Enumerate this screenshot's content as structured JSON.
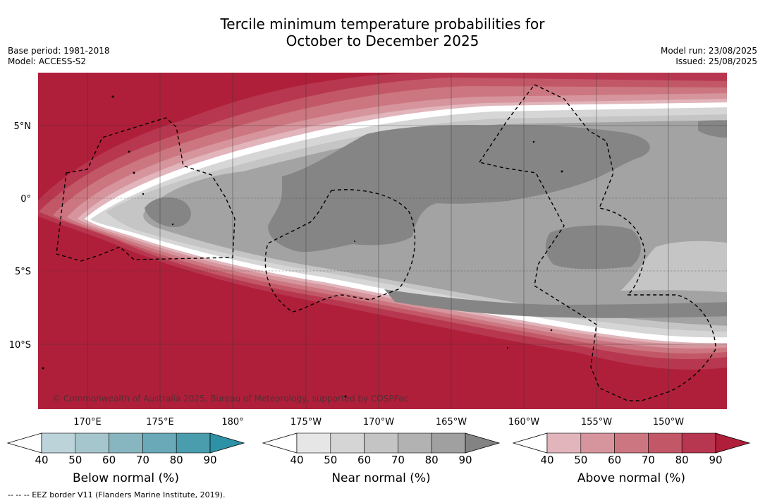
{
  "title_line1": "Tercile minimum temperature probabilities for",
  "title_line2": "October to December 2025",
  "base_period": "Base period: 1981-2018",
  "model": "Model: ACCESS-S2",
  "model_run": "Model run: 23/08/2025",
  "issued": "Issued: 25/08/2025",
  "copyright": "© Commonwealth of Australia 2025, Bureau of Meteorology, supported by COSPPac",
  "footnote": "--  --  -- EEZ border V11 (Flanders Marine Institute, 2019).",
  "lat_labels": [
    "5°N",
    "0°",
    "5°S",
    "10°S"
  ],
  "lon_labels": [
    "170°E",
    "175°E",
    "180°",
    "175°W",
    "170°W",
    "165°W",
    "160°W",
    "155°W",
    "150°W"
  ],
  "colorbars": [
    {
      "label": "Below normal (%)",
      "ticks": [
        "40",
        "50",
        "60",
        "70",
        "80",
        "90"
      ],
      "colors": [
        "#bcd3da",
        "#a5c6cc",
        "#88b6c0",
        "#6aa9b7",
        "#4a9dac",
        "#2e92a6"
      ]
    },
    {
      "label": "Near normal (%)",
      "ticks": [
        "40",
        "50",
        "60",
        "70",
        "80",
        "90"
      ],
      "colors": [
        "#e6e6e6",
        "#d5d5d5",
        "#c4c4c4",
        "#b2b2b2",
        "#a0a0a0",
        "#838383"
      ]
    },
    {
      "label": "Above normal (%)",
      "ticks": [
        "40",
        "50",
        "60",
        "70",
        "80",
        "90"
      ],
      "colors": [
        "#e1b5bb",
        "#d6959c",
        "#cc7681",
        "#c25867",
        "#b83750",
        "#b01f3a"
      ]
    }
  ],
  "palette": {
    "above90": "#b01f3a",
    "above80": "#b83750",
    "above70": "#c25867",
    "above60": "#cc7681",
    "above50": "#d6959c",
    "near40": "#d6d6d6",
    "near50": "#c5c5c5",
    "near60": "#a3a3a3",
    "near70": "#858585"
  }
}
